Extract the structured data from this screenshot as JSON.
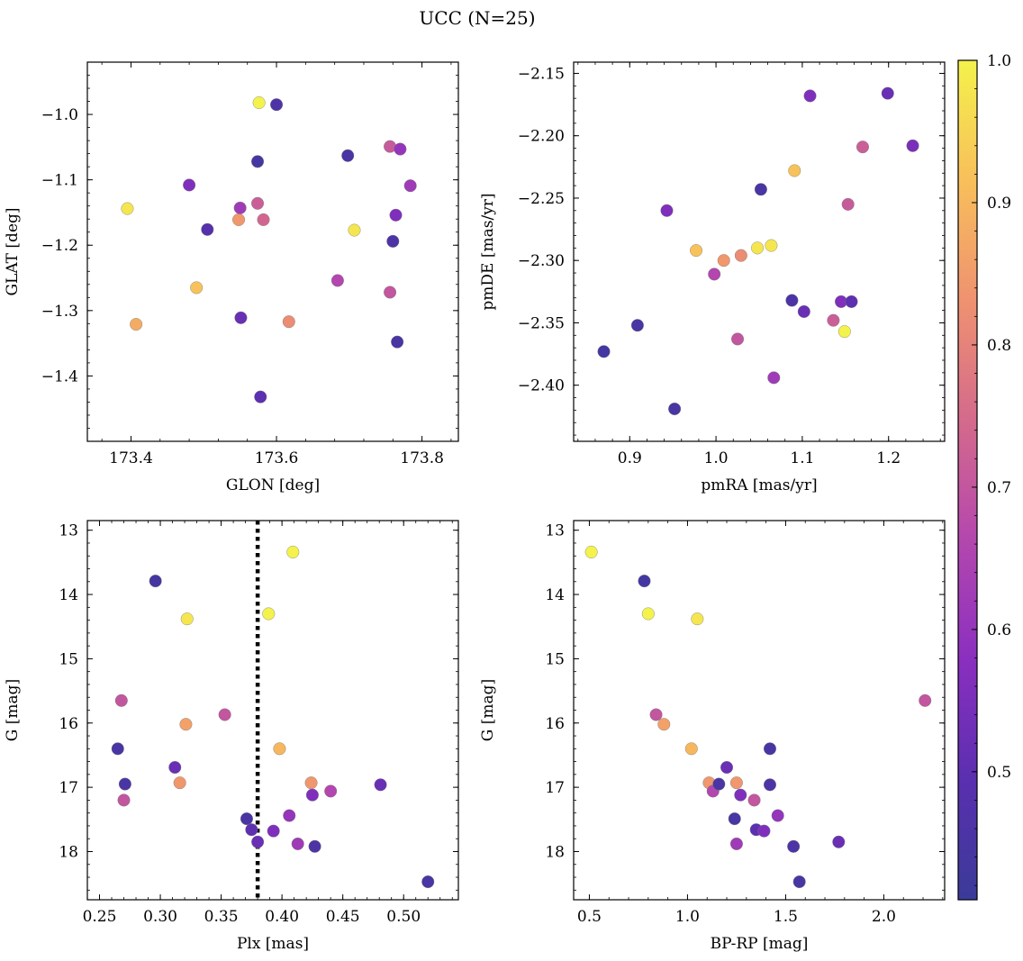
{
  "figure": {
    "suptitle": "UCC (N=25)"
  },
  "colorbar": {
    "range": [
      0.41,
      1.0
    ],
    "ticks": [
      0.5,
      0.6,
      0.7,
      0.8,
      0.9,
      1.0
    ],
    "tick_labels": [
      "0.5",
      "0.6",
      "0.7",
      "0.8",
      "0.9",
      "1.0"
    ],
    "colormap": "plasma",
    "colors": [
      "#3a3b98",
      "#5a2fb0",
      "#8a2fbf",
      "#b447ae",
      "#d46a8c",
      "#ef9270",
      "#f8bf5b",
      "#f4f24c"
    ]
  },
  "chart_data": [
    {
      "id": "glon-glat",
      "type": "scatter",
      "xlabel": "GLON [deg]",
      "ylabel": "GLAT [deg]",
      "xlim": [
        173.34,
        173.85
      ],
      "ylim": [
        -1.5,
        -0.92
      ],
      "y_inverted": false,
      "xticks": [
        173.4,
        173.6,
        173.8
      ],
      "xtick_labels": [
        "173.4",
        "173.6",
        "173.8"
      ],
      "yticks": [
        -1.0,
        -1.1,
        -1.2,
        -1.3,
        -1.4
      ],
      "ytick_labels": [
        "−1.0",
        "−1.1",
        "−1.2",
        "−1.3",
        "−1.4"
      ],
      "points": [
        {
          "x": 173.395,
          "y": -1.144,
          "c": 0.98
        },
        {
          "x": 173.407,
          "y": -1.321,
          "c": 0.88
        },
        {
          "x": 173.48,
          "y": -1.108,
          "c": 0.56
        },
        {
          "x": 173.49,
          "y": -1.265,
          "c": 0.92
        },
        {
          "x": 173.505,
          "y": -1.176,
          "c": 0.48
        },
        {
          "x": 173.548,
          "y": -1.161,
          "c": 0.84
        },
        {
          "x": 173.55,
          "y": -1.143,
          "c": 0.62
        },
        {
          "x": 173.551,
          "y": -1.311,
          "c": 0.52
        },
        {
          "x": 173.574,
          "y": -1.072,
          "c": 0.44
        },
        {
          "x": 173.574,
          "y": -1.136,
          "c": 0.72
        },
        {
          "x": 173.576,
          "y": -0.982,
          "c": 1.0
        },
        {
          "x": 173.578,
          "y": -1.432,
          "c": 0.5
        },
        {
          "x": 173.582,
          "y": -1.161,
          "c": 0.74
        },
        {
          "x": 173.6,
          "y": -0.985,
          "c": 0.46
        },
        {
          "x": 173.617,
          "y": -1.317,
          "c": 0.82
        },
        {
          "x": 173.684,
          "y": -1.254,
          "c": 0.66
        },
        {
          "x": 173.698,
          "y": -1.063,
          "c": 0.45
        },
        {
          "x": 173.707,
          "y": -1.177,
          "c": 0.98
        },
        {
          "x": 173.756,
          "y": -1.049,
          "c": 0.71
        },
        {
          "x": 173.756,
          "y": -1.272,
          "c": 0.7
        },
        {
          "x": 173.76,
          "y": -1.194,
          "c": 0.46
        },
        {
          "x": 173.764,
          "y": -1.154,
          "c": 0.56
        },
        {
          "x": 173.766,
          "y": -1.348,
          "c": 0.45
        },
        {
          "x": 173.77,
          "y": -1.053,
          "c": 0.6
        },
        {
          "x": 173.784,
          "y": -1.109,
          "c": 0.62
        }
      ]
    },
    {
      "id": "pmra-pmde",
      "type": "scatter",
      "xlabel": "pmRA [mas/yr]",
      "ylabel": "pmDE [mas/yr]",
      "xlim": [
        0.835,
        1.265
      ],
      "ylim": [
        -2.445,
        -2.141
      ],
      "y_inverted": false,
      "xticks": [
        0.9,
        1.0,
        1.1,
        1.2
      ],
      "xtick_labels": [
        "0.9",
        "1.0",
        "1.1",
        "1.2"
      ],
      "yticks": [
        -2.15,
        -2.2,
        -2.25,
        -2.3,
        -2.35,
        -2.4
      ],
      "ytick_labels": [
        "−2.15",
        "−2.20",
        "−2.25",
        "−2.30",
        "−2.35",
        "−2.40"
      ],
      "points": [
        {
          "x": 0.87,
          "y": -2.373,
          "c": 0.44
        },
        {
          "x": 0.909,
          "y": -2.352,
          "c": 0.45
        },
        {
          "x": 0.943,
          "y": -2.26,
          "c": 0.56
        },
        {
          "x": 0.952,
          "y": -2.419,
          "c": 0.45
        },
        {
          "x": 0.977,
          "y": -2.292,
          "c": 0.92
        },
        {
          "x": 0.998,
          "y": -2.311,
          "c": 0.66
        },
        {
          "x": 1.009,
          "y": -2.3,
          "c": 0.84
        },
        {
          "x": 1.025,
          "y": -2.363,
          "c": 0.7
        },
        {
          "x": 1.029,
          "y": -2.296,
          "c": 0.82
        },
        {
          "x": 1.048,
          "y": -2.29,
          "c": 0.98
        },
        {
          "x": 1.052,
          "y": -2.243,
          "c": 0.45
        },
        {
          "x": 1.064,
          "y": -2.288,
          "c": 0.98
        },
        {
          "x": 1.067,
          "y": -2.394,
          "c": 0.62
        },
        {
          "x": 1.088,
          "y": -2.332,
          "c": 0.46
        },
        {
          "x": 1.091,
          "y": -2.228,
          "c": 0.92
        },
        {
          "x": 1.102,
          "y": -2.341,
          "c": 0.52
        },
        {
          "x": 1.109,
          "y": -2.168,
          "c": 0.56
        },
        {
          "x": 1.136,
          "y": -2.348,
          "c": 0.72
        },
        {
          "x": 1.145,
          "y": -2.333,
          "c": 0.56
        },
        {
          "x": 1.149,
          "y": -2.357,
          "c": 1.0
        },
        {
          "x": 1.153,
          "y": -2.255,
          "c": 0.71
        },
        {
          "x": 1.157,
          "y": -2.333,
          "c": 0.5
        },
        {
          "x": 1.17,
          "y": -2.209,
          "c": 0.72
        },
        {
          "x": 1.199,
          "y": -2.166,
          "c": 0.52
        },
        {
          "x": 1.228,
          "y": -2.208,
          "c": 0.55
        }
      ]
    },
    {
      "id": "plx-g",
      "type": "scatter",
      "xlabel": "Plx [mas]",
      "ylabel": "G [mag]",
      "xlim": [
        0.24,
        0.545
      ],
      "ylim": [
        18.75,
        12.85
      ],
      "y_inverted": true,
      "vline": {
        "x": 0.38,
        "style": "dotted"
      },
      "xticks": [
        0.25,
        0.3,
        0.35,
        0.4,
        0.45,
        0.5
      ],
      "xtick_labels": [
        "0.25",
        "0.30",
        "0.35",
        "0.40",
        "0.45",
        "0.50"
      ],
      "yticks": [
        13,
        14,
        15,
        16,
        17,
        18
      ],
      "ytick_labels": [
        "13",
        "14",
        "15",
        "16",
        "17",
        "18"
      ],
      "points": [
        {
          "x": 0.265,
          "y": 16.4,
          "c": 0.45
        },
        {
          "x": 0.268,
          "y": 15.65,
          "c": 0.7
        },
        {
          "x": 0.27,
          "y": 17.2,
          "c": 0.7
        },
        {
          "x": 0.271,
          "y": 16.95,
          "c": 0.45
        },
        {
          "x": 0.296,
          "y": 13.79,
          "c": 0.44
        },
        {
          "x": 0.312,
          "y": 16.69,
          "c": 0.52
        },
        {
          "x": 0.316,
          "y": 16.93,
          "c": 0.84
        },
        {
          "x": 0.321,
          "y": 16.02,
          "c": 0.86
        },
        {
          "x": 0.322,
          "y": 14.38,
          "c": 0.98
        },
        {
          "x": 0.353,
          "y": 15.87,
          "c": 0.7
        },
        {
          "x": 0.371,
          "y": 17.49,
          "c": 0.45
        },
        {
          "x": 0.375,
          "y": 17.66,
          "c": 0.5
        },
        {
          "x": 0.38,
          "y": 17.85,
          "c": 0.52
        },
        {
          "x": 0.389,
          "y": 14.3,
          "c": 1.0
        },
        {
          "x": 0.393,
          "y": 17.68,
          "c": 0.56
        },
        {
          "x": 0.398,
          "y": 16.4,
          "c": 0.9
        },
        {
          "x": 0.406,
          "y": 17.44,
          "c": 0.6
        },
        {
          "x": 0.409,
          "y": 13.34,
          "c": 1.0
        },
        {
          "x": 0.413,
          "y": 17.88,
          "c": 0.62
        },
        {
          "x": 0.424,
          "y": 16.93,
          "c": 0.84
        },
        {
          "x": 0.425,
          "y": 17.12,
          "c": 0.56
        },
        {
          "x": 0.427,
          "y": 17.92,
          "c": 0.46
        },
        {
          "x": 0.44,
          "y": 17.06,
          "c": 0.66
        },
        {
          "x": 0.481,
          "y": 16.96,
          "c": 0.52
        },
        {
          "x": 0.52,
          "y": 18.47,
          "c": 0.45
        }
      ]
    },
    {
      "id": "bprp-g",
      "type": "scatter",
      "xlabel": "BP-RP [mag]",
      "ylabel": "G [mag]",
      "xlim": [
        0.42,
        2.31
      ],
      "ylim": [
        18.75,
        12.85
      ],
      "y_inverted": true,
      "xticks": [
        0.5,
        1.0,
        1.5,
        2.0
      ],
      "xtick_labels": [
        "0.5",
        "1.0",
        "1.5",
        "2.0"
      ],
      "yticks": [
        13,
        14,
        15,
        16,
        17,
        18
      ],
      "ytick_labels": [
        "13",
        "14",
        "15",
        "16",
        "17",
        "18"
      ],
      "points": [
        {
          "x": 0.51,
          "y": 13.34,
          "c": 1.0
        },
        {
          "x": 0.78,
          "y": 13.79,
          "c": 0.44
        },
        {
          "x": 0.8,
          "y": 14.3,
          "c": 1.0
        },
        {
          "x": 0.84,
          "y": 15.87,
          "c": 0.7
        },
        {
          "x": 0.88,
          "y": 16.02,
          "c": 0.86
        },
        {
          "x": 1.02,
          "y": 16.4,
          "c": 0.9
        },
        {
          "x": 1.05,
          "y": 14.38,
          "c": 0.98
        },
        {
          "x": 1.11,
          "y": 16.93,
          "c": 0.84
        },
        {
          "x": 1.13,
          "y": 17.06,
          "c": 0.66
        },
        {
          "x": 1.16,
          "y": 16.95,
          "c": 0.45
        },
        {
          "x": 1.2,
          "y": 16.69,
          "c": 0.52
        },
        {
          "x": 1.24,
          "y": 17.49,
          "c": 0.45
        },
        {
          "x": 1.25,
          "y": 16.93,
          "c": 0.84
        },
        {
          "x": 1.25,
          "y": 17.88,
          "c": 0.62
        },
        {
          "x": 1.27,
          "y": 17.12,
          "c": 0.56
        },
        {
          "x": 1.34,
          "y": 17.2,
          "c": 0.7
        },
        {
          "x": 1.35,
          "y": 17.66,
          "c": 0.5
        },
        {
          "x": 1.39,
          "y": 17.68,
          "c": 0.56
        },
        {
          "x": 1.42,
          "y": 16.4,
          "c": 0.45
        },
        {
          "x": 1.42,
          "y": 16.96,
          "c": 0.46
        },
        {
          "x": 1.46,
          "y": 17.44,
          "c": 0.6
        },
        {
          "x": 1.54,
          "y": 17.92,
          "c": 0.46
        },
        {
          "x": 1.57,
          "y": 18.47,
          "c": 0.45
        },
        {
          "x": 1.77,
          "y": 17.85,
          "c": 0.52
        },
        {
          "x": 2.21,
          "y": 15.65,
          "c": 0.7
        }
      ]
    }
  ]
}
